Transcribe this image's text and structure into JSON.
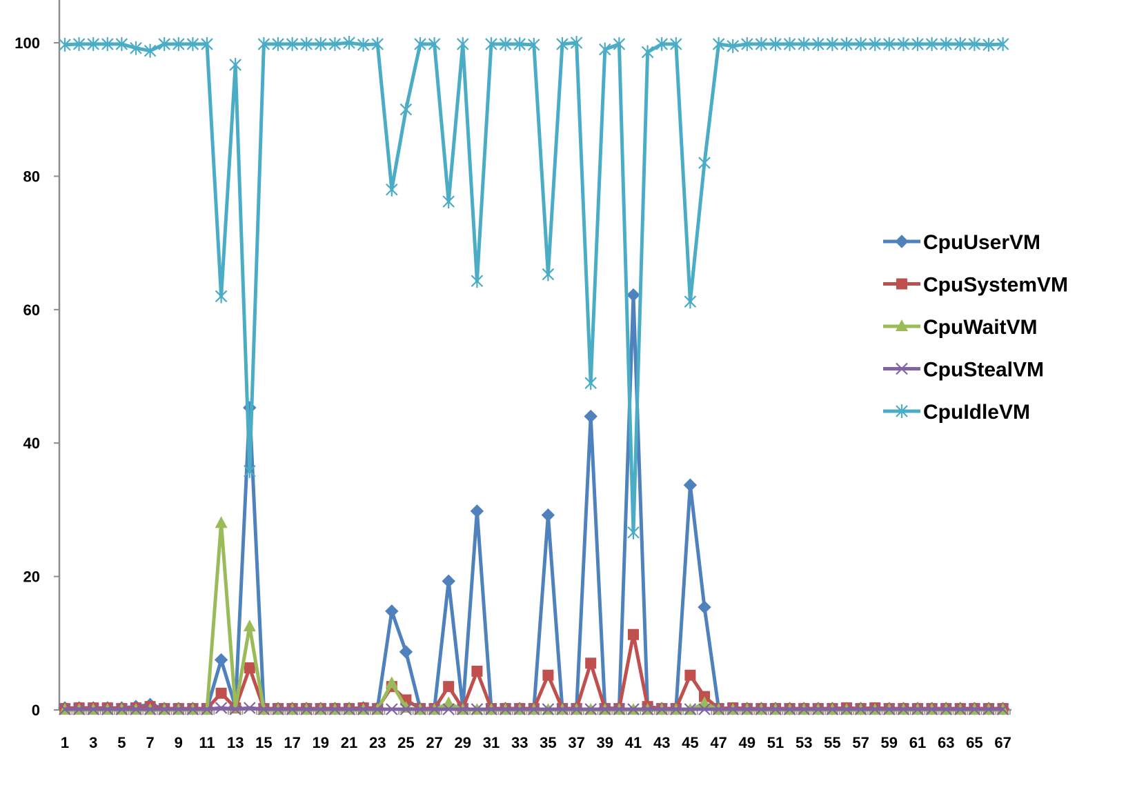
{
  "chart_data": {
    "type": "line",
    "title": "",
    "xlabel": "",
    "ylabel": "",
    "ylim": [
      0,
      100
    ],
    "y_ticks": [
      0,
      20,
      40,
      60,
      80,
      100
    ],
    "x_tick_labels": [
      "1",
      "3",
      "5",
      "7",
      "9",
      "11",
      "13",
      "15",
      "17",
      "19",
      "21",
      "23",
      "25",
      "27",
      "29",
      "31",
      "33",
      "35",
      "37",
      "39",
      "41",
      "43",
      "45",
      "47",
      "49",
      "51",
      "53",
      "55",
      "57",
      "59",
      "61",
      "63",
      "65",
      "67"
    ],
    "grid": false,
    "legend_position": "right",
    "x": [
      1,
      2,
      3,
      4,
      5,
      6,
      7,
      8,
      9,
      10,
      11,
      12,
      13,
      14,
      15,
      16,
      17,
      18,
      19,
      20,
      21,
      22,
      23,
      24,
      25,
      26,
      27,
      28,
      29,
      30,
      31,
      32,
      33,
      34,
      35,
      36,
      37,
      38,
      39,
      40,
      41,
      42,
      43,
      44,
      45,
      46,
      47,
      48,
      49,
      50,
      51,
      52,
      53,
      54,
      55,
      56,
      57,
      58,
      59,
      60,
      61,
      62,
      63,
      64,
      65,
      66,
      67
    ],
    "series": [
      {
        "name": "CpuUserVM",
        "color": "#4F81BD",
        "marker": "diamond",
        "values": [
          0.3,
          0.3,
          0.3,
          0.3,
          0.3,
          0.5,
          0.8,
          0.2,
          0.2,
          0.2,
          0.2,
          7.5,
          0.5,
          45.3,
          0.2,
          0.2,
          0.2,
          0.2,
          0.2,
          0.2,
          0.2,
          0.3,
          0.3,
          14.8,
          8.7,
          0.2,
          0.2,
          19.3,
          0.3,
          29.8,
          0.2,
          0.2,
          0.2,
          0.2,
          29.2,
          0.2,
          0.2,
          44.0,
          0.3,
          0.2,
          62.2,
          0.3,
          0.2,
          0.2,
          33.7,
          15.4,
          0.2,
          0.2,
          0.2,
          0.2,
          0.2,
          0.2,
          0.2,
          0.2,
          0.2,
          0.2,
          0.2,
          0.2,
          0.2,
          0.2,
          0.2,
          0.2,
          0.2,
          0.2,
          0.2,
          0.2,
          0.2
        ]
      },
      {
        "name": "CpuSystemVM",
        "color": "#C0504D",
        "marker": "square",
        "values": [
          0.2,
          0.3,
          0.3,
          0.3,
          0.2,
          0.3,
          0.5,
          0.2,
          0.2,
          0.2,
          0.2,
          2.5,
          0.3,
          6.3,
          0.2,
          0.2,
          0.2,
          0.2,
          0.2,
          0.2,
          0.2,
          0.3,
          0.2,
          3.5,
          1.5,
          0.2,
          0.2,
          3.5,
          0.2,
          5.8,
          0.2,
          0.2,
          0.2,
          0.2,
          5.2,
          0.2,
          0.2,
          7.0,
          0.2,
          0.2,
          11.3,
          0.5,
          0.2,
          0.2,
          5.2,
          2.0,
          0.2,
          0.3,
          0.2,
          0.2,
          0.2,
          0.2,
          0.2,
          0.2,
          0.2,
          0.3,
          0.2,
          0.3,
          0.2,
          0.2,
          0.2,
          0.2,
          0.2,
          0.2,
          0.2,
          0.2,
          0.2
        ]
      },
      {
        "name": "CpuWaitVM",
        "color": "#9BBB59",
        "marker": "triangle",
        "values": [
          0.0,
          0.0,
          0.0,
          0.0,
          0.0,
          0.0,
          0.0,
          0.0,
          0.0,
          0.0,
          0.0,
          28.0,
          0.3,
          12.5,
          0.0,
          0.0,
          0.0,
          0.0,
          0.0,
          0.0,
          0.0,
          0.0,
          0.0,
          4.0,
          0.3,
          0.0,
          0.0,
          1.0,
          0.0,
          0.0,
          0.0,
          0.0,
          0.0,
          0.0,
          0.0,
          0.0,
          0.0,
          0.0,
          0.0,
          0.0,
          0.0,
          0.0,
          0.0,
          0.0,
          0.0,
          1.0,
          0.0,
          0.0,
          0.0,
          0.0,
          0.0,
          0.0,
          0.0,
          0.0,
          0.0,
          0.0,
          0.0,
          0.0,
          0.0,
          0.0,
          0.0,
          0.0,
          0.0,
          0.0,
          0.0,
          0.0,
          0.0
        ]
      },
      {
        "name": "CpuStealVM",
        "color": "#8064A2",
        "marker": "x",
        "values": [
          0.1,
          0.1,
          0.1,
          0.1,
          0.1,
          0.1,
          0.1,
          0.1,
          0.1,
          0.1,
          0.1,
          0.3,
          0.1,
          0.3,
          0.1,
          0.1,
          0.1,
          0.1,
          0.1,
          0.1,
          0.1,
          0.1,
          0.1,
          0.1,
          0.1,
          0.1,
          0.1,
          0.1,
          0.1,
          0.1,
          0.1,
          0.1,
          0.1,
          0.1,
          0.1,
          0.1,
          0.1,
          0.1,
          0.1,
          0.1,
          0.1,
          0.1,
          0.1,
          0.1,
          0.1,
          0.1,
          0.1,
          0.1,
          0.1,
          0.1,
          0.1,
          0.1,
          0.1,
          0.1,
          0.1,
          0.1,
          0.1,
          0.1,
          0.1,
          0.1,
          0.1,
          0.1,
          0.1,
          0.1,
          0.1,
          0.1,
          0.1
        ]
      },
      {
        "name": "CpuIdleVM",
        "color": "#4BACC6",
        "marker": "asterisk",
        "values": [
          99.7,
          99.8,
          99.8,
          99.8,
          99.8,
          99.2,
          98.8,
          99.8,
          99.8,
          99.8,
          99.8,
          62.0,
          96.7,
          35.8,
          99.8,
          99.8,
          99.8,
          99.8,
          99.8,
          99.8,
          100.0,
          99.7,
          99.8,
          78.0,
          90.0,
          99.8,
          99.8,
          76.2,
          99.8,
          64.3,
          99.8,
          99.8,
          99.8,
          99.7,
          65.3,
          99.8,
          100.0,
          49.0,
          99.0,
          99.8,
          26.6,
          98.6,
          99.8,
          99.8,
          61.2,
          82.0,
          99.8,
          99.5,
          99.8,
          99.8,
          99.8,
          99.8,
          99.8,
          99.8,
          99.8,
          99.8,
          99.8,
          99.8,
          99.8,
          99.8,
          99.8,
          99.8,
          99.8,
          99.8,
          99.8,
          99.7,
          99.8
        ]
      }
    ]
  }
}
